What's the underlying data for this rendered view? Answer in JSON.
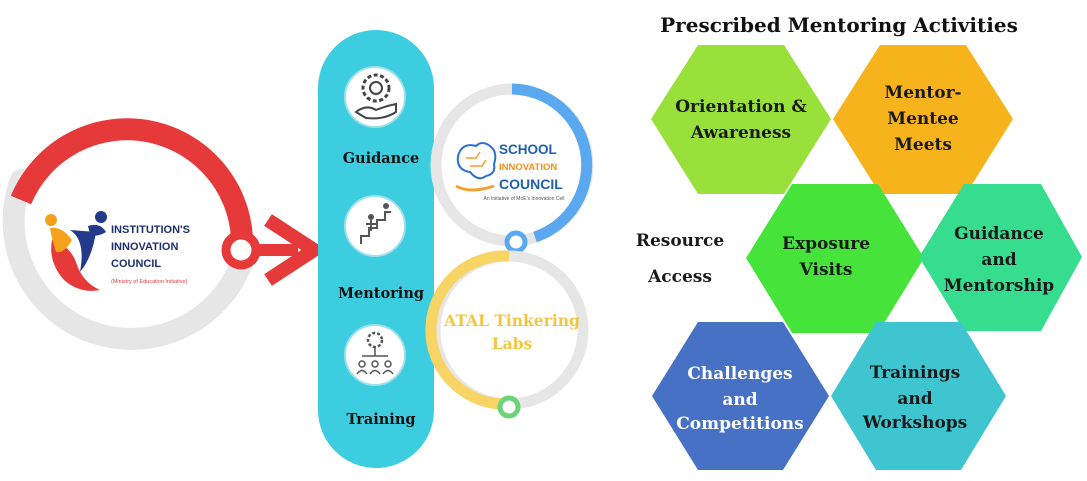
{
  "iic": {
    "line1": "INSTITUTION'S",
    "line2": "INNOVATION",
    "line3": "COUNCIL",
    "line4": "(Ministry of Education Initiative)"
  },
  "pillar": {
    "item1": "Guidance",
    "item2": "Mentoring",
    "item3": "Training"
  },
  "sic": {
    "line1": "SCHOOL",
    "line2": "INNOVATION",
    "line3": "COUNCIL",
    "tagline": "An Initiative of MoE's Innovation Cell"
  },
  "atl": {
    "line1": "ATAL Tinkering",
    "line2": "Labs"
  },
  "activities": {
    "title": "Prescribed Mentoring Activities",
    "resource_line1": "Resource",
    "resource_line2": "Access",
    "hex1": [
      "Orientation &",
      "Awareness"
    ],
    "hex2": [
      "Mentor-",
      "Mentee",
      "Meets"
    ],
    "hex3": [
      "Exposure",
      "Visits"
    ],
    "hex4": [
      "Guidance",
      "and",
      "Mentorship"
    ],
    "hex5": [
      "Challenges",
      "and",
      "Competitions"
    ],
    "hex6": [
      "Trainings",
      "and",
      "Workshops"
    ]
  },
  "colors": {
    "red": "#e63a3a",
    "grey_ring": "#e6e6e6",
    "pillar": "#3dcde0",
    "blue_arc": "#5aa9f0",
    "yellow_arc": "#f7d463",
    "hex_lime": "#99e03a",
    "hex_orange": "#f7b31c",
    "hex_green": "#46e33a",
    "hex_teal_green": "#36dd8e",
    "hex_blue": "#4771c5",
    "hex_cyan": "#3ec5cf"
  }
}
